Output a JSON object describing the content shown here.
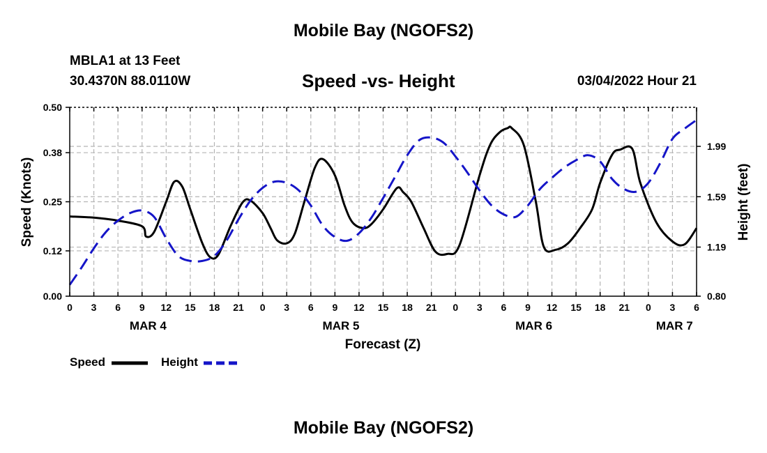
{
  "header": {
    "title": "Mobile Bay (NGOFS2)",
    "station": "MBLA1 at 13 Feet",
    "coords": "30.4370N  88.0110W",
    "subtitle": "Speed -vs- Height",
    "datetime": "03/04/2022 Hour 21"
  },
  "footer": {
    "title": "Mobile Bay (NGOFS2)"
  },
  "legend": {
    "speed_label": "Speed",
    "height_label": "Height"
  },
  "colors": {
    "speed": "#000000",
    "height": "#1515c8",
    "grid": "#b4b4b4"
  },
  "chart_data": {
    "type": "line",
    "xlabel": "Forecast (Z)",
    "ylabel_left": "Speed (Knots)",
    "ylabel_right": "Height (feet)",
    "x_range": [
      0,
      78
    ],
    "x_tick_labels": [
      "0",
      "3",
      "6",
      "9",
      "12",
      "15",
      "18",
      "21",
      "0",
      "3",
      "6",
      "9",
      "12",
      "15",
      "18",
      "21",
      "0",
      "3",
      "6",
      "9",
      "12",
      "15",
      "18",
      "21",
      "0",
      "3",
      "6"
    ],
    "day_labels": [
      {
        "label": "MAR 4",
        "x": 9.75
      },
      {
        "label": "MAR 5",
        "x": 33.75
      },
      {
        "label": "MAR 6",
        "x": 57.75
      },
      {
        "label": "MAR 7",
        "x": 75.25
      }
    ],
    "ylim_left": [
      0,
      0.5
    ],
    "yticks_left": [
      "0.00",
      "0.12",
      "0.25",
      "0.38",
      "0.50"
    ],
    "ylim_right": [
      0.8,
      2.3
    ],
    "yticks_right": [
      "0.80",
      "1.19",
      "1.59",
      "1.99"
    ],
    "series": [
      {
        "name": "Speed",
        "axis": "left",
        "x": [
          0,
          3,
          6,
          9,
          9.5,
          10.5,
          12,
          13,
          14,
          15,
          16.5,
          17.5,
          18.5,
          20,
          21.5,
          22.5,
          24,
          25,
          25.8,
          27,
          28,
          29.2,
          30.5,
          31.5,
          33,
          34.2,
          35.2,
          36.5,
          37.5,
          39,
          40.7,
          41.5,
          42.5,
          44,
          45.5,
          47,
          48.5,
          51,
          52.3,
          53.5,
          54.5,
          55,
          56.5,
          58,
          59,
          60.5,
          62,
          63.5,
          65,
          66,
          67.5,
          68.5,
          70,
          71,
          73,
          75,
          76.5,
          78
        ],
        "values": [
          0.211,
          0.208,
          0.2,
          0.185,
          0.158,
          0.17,
          0.25,
          0.303,
          0.29,
          0.23,
          0.14,
          0.103,
          0.11,
          0.185,
          0.248,
          0.253,
          0.22,
          0.18,
          0.148,
          0.14,
          0.165,
          0.25,
          0.34,
          0.363,
          0.32,
          0.24,
          0.195,
          0.18,
          0.19,
          0.23,
          0.286,
          0.275,
          0.25,
          0.182,
          0.118,
          0.112,
          0.135,
          0.32,
          0.4,
          0.434,
          0.445,
          0.445,
          0.4,
          0.25,
          0.13,
          0.123,
          0.14,
          0.18,
          0.23,
          0.3,
          0.375,
          0.388,
          0.39,
          0.3,
          0.195,
          0.145,
          0.137,
          0.18
        ]
      },
      {
        "name": "Height",
        "axis": "right",
        "x": [
          0,
          1.5,
          3,
          4.5,
          6,
          7.5,
          9,
          10.5,
          12,
          13.5,
          15,
          16.5,
          18,
          19.5,
          21,
          22.5,
          24,
          25.5,
          27,
          28.5,
          30,
          31.5,
          33,
          34.5,
          36,
          37.5,
          39,
          40.5,
          42,
          43.5,
          45,
          46.5,
          48,
          49.5,
          51,
          52.5,
          54,
          55.5,
          57,
          58.5,
          60,
          61.5,
          63,
          64.5,
          66,
          67.5,
          69,
          70.5,
          72,
          73.5,
          75,
          76.5,
          78
        ],
        "values": [
          0.89,
          1.03,
          1.18,
          1.31,
          1.4,
          1.46,
          1.48,
          1.43,
          1.26,
          1.12,
          1.08,
          1.08,
          1.12,
          1.24,
          1.41,
          1.56,
          1.66,
          1.71,
          1.7,
          1.64,
          1.52,
          1.36,
          1.27,
          1.24,
          1.3,
          1.42,
          1.58,
          1.75,
          1.92,
          2.04,
          2.06,
          2.02,
          1.91,
          1.78,
          1.64,
          1.52,
          1.45,
          1.43,
          1.52,
          1.65,
          1.74,
          1.82,
          1.88,
          1.92,
          1.87,
          1.73,
          1.65,
          1.63,
          1.7,
          1.86,
          2.05,
          2.13,
          2.2
        ]
      }
    ]
  }
}
